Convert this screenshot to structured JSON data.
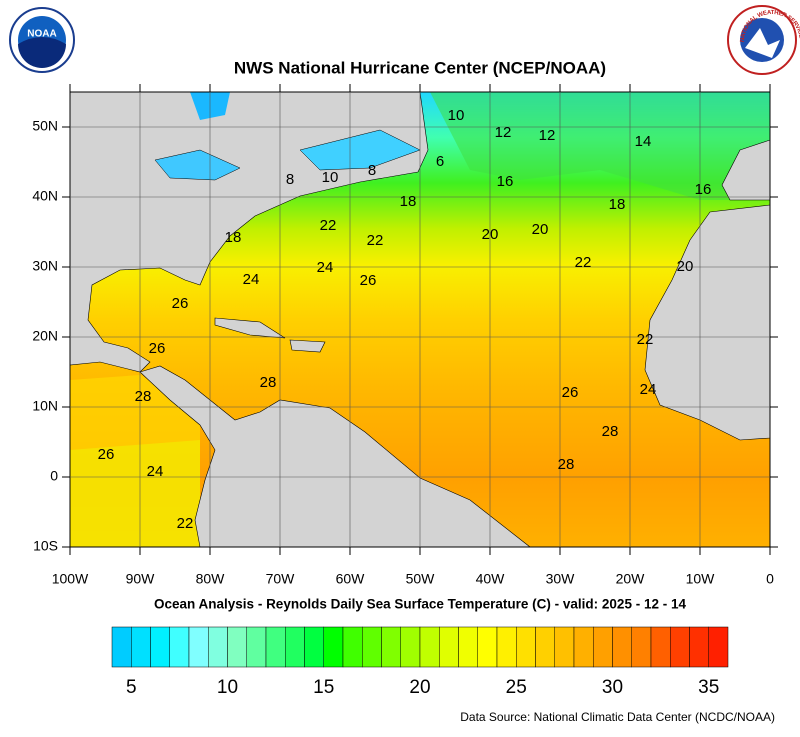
{
  "header": {
    "title": "NWS National Hurricane Center (NCEP/NOAA)",
    "noaa_logo": "NOAA",
    "nws_logo": "NATIONAL WEATHER SERVICE"
  },
  "map": {
    "lat_labels": [
      "50N",
      "40N",
      "30N",
      "20N",
      "10N",
      "0",
      "10S"
    ],
    "lon_labels": [
      "100W",
      "90W",
      "80W",
      "70W",
      "60W",
      "50W",
      "40W",
      "30W",
      "20W",
      "10W",
      "0"
    ],
    "contour_labels": [
      "10",
      "12",
      "12",
      "14",
      "6",
      "8",
      "10",
      "8",
      "16",
      "16",
      "18",
      "18",
      "22",
      "18",
      "20",
      "20",
      "22",
      "22",
      "20",
      "24",
      "24",
      "26",
      "26",
      "22",
      "26",
      "28",
      "28",
      "26",
      "24",
      "28",
      "26",
      "24",
      "28",
      "22"
    ]
  },
  "subtitle": "Ocean Analysis - Reynolds Daily Sea Surface Temperature (C) - valid: 2025 - 12 - 14",
  "colorbar": {
    "min": 4,
    "max": 36,
    "ticks": [
      5,
      10,
      15,
      20,
      25,
      30,
      35
    ],
    "colors": [
      "#00ccff",
      "#00e0ff",
      "#00f0ff",
      "#40ffff",
      "#80ffff",
      "#80ffe0",
      "#80ffc0",
      "#60ffa0",
      "#40ff80",
      "#20ff60",
      "#00ff40",
      "#00ff00",
      "#40ff00",
      "#60ff00",
      "#80ff00",
      "#a0ff00",
      "#c0ff00",
      "#e0ff00",
      "#f0ff00",
      "#ffff00",
      "#fff000",
      "#ffe000",
      "#ffd000",
      "#ffc000",
      "#ffb000",
      "#ffa000",
      "#ff9000",
      "#ff8000",
      "#ff6000",
      "#ff4000",
      "#ff3000",
      "#ff2000"
    ]
  },
  "source": "Data Source: National Climatic Data Center (NCDC/NOAA)"
}
